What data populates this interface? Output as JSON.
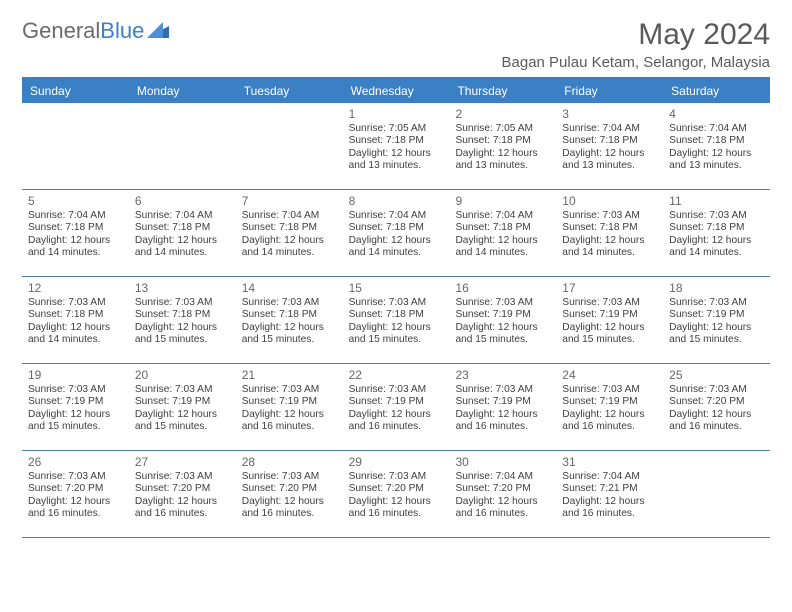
{
  "logo": {
    "text_general": "General",
    "text_blue": "Blue"
  },
  "title": "May 2024",
  "location": "Bagan Pulau Ketam, Selangor, Malaysia",
  "colors": {
    "header_bg": "#3b7fc4",
    "header_text": "#ffffff",
    "border": "#4a7db0",
    "body_text": "#3f3f3f",
    "daynum_text": "#676767",
    "title_text": "#5a5a5a",
    "page_bg": "#ffffff"
  },
  "typography": {
    "title_fontsize": 30,
    "location_fontsize": 15,
    "header_fontsize": 12,
    "daynum_fontsize": 12,
    "detail_fontsize": 10.2
  },
  "day_labels": [
    "Sunday",
    "Monday",
    "Tuesday",
    "Wednesday",
    "Thursday",
    "Friday",
    "Saturday"
  ],
  "weeks": [
    [
      {
        "n": "",
        "sunrise": "",
        "sunset": "",
        "daylight": ""
      },
      {
        "n": "",
        "sunrise": "",
        "sunset": "",
        "daylight": ""
      },
      {
        "n": "",
        "sunrise": "",
        "sunset": "",
        "daylight": ""
      },
      {
        "n": "1",
        "sunrise": "Sunrise: 7:05 AM",
        "sunset": "Sunset: 7:18 PM",
        "daylight": "Daylight: 12 hours and 13 minutes."
      },
      {
        "n": "2",
        "sunrise": "Sunrise: 7:05 AM",
        "sunset": "Sunset: 7:18 PM",
        "daylight": "Daylight: 12 hours and 13 minutes."
      },
      {
        "n": "3",
        "sunrise": "Sunrise: 7:04 AM",
        "sunset": "Sunset: 7:18 PM",
        "daylight": "Daylight: 12 hours and 13 minutes."
      },
      {
        "n": "4",
        "sunrise": "Sunrise: 7:04 AM",
        "sunset": "Sunset: 7:18 PM",
        "daylight": "Daylight: 12 hours and 13 minutes."
      }
    ],
    [
      {
        "n": "5",
        "sunrise": "Sunrise: 7:04 AM",
        "sunset": "Sunset: 7:18 PM",
        "daylight": "Daylight: 12 hours and 14 minutes."
      },
      {
        "n": "6",
        "sunrise": "Sunrise: 7:04 AM",
        "sunset": "Sunset: 7:18 PM",
        "daylight": "Daylight: 12 hours and 14 minutes."
      },
      {
        "n": "7",
        "sunrise": "Sunrise: 7:04 AM",
        "sunset": "Sunset: 7:18 PM",
        "daylight": "Daylight: 12 hours and 14 minutes."
      },
      {
        "n": "8",
        "sunrise": "Sunrise: 7:04 AM",
        "sunset": "Sunset: 7:18 PM",
        "daylight": "Daylight: 12 hours and 14 minutes."
      },
      {
        "n": "9",
        "sunrise": "Sunrise: 7:04 AM",
        "sunset": "Sunset: 7:18 PM",
        "daylight": "Daylight: 12 hours and 14 minutes."
      },
      {
        "n": "10",
        "sunrise": "Sunrise: 7:03 AM",
        "sunset": "Sunset: 7:18 PM",
        "daylight": "Daylight: 12 hours and 14 minutes."
      },
      {
        "n": "11",
        "sunrise": "Sunrise: 7:03 AM",
        "sunset": "Sunset: 7:18 PM",
        "daylight": "Daylight: 12 hours and 14 minutes."
      }
    ],
    [
      {
        "n": "12",
        "sunrise": "Sunrise: 7:03 AM",
        "sunset": "Sunset: 7:18 PM",
        "daylight": "Daylight: 12 hours and 14 minutes."
      },
      {
        "n": "13",
        "sunrise": "Sunrise: 7:03 AM",
        "sunset": "Sunset: 7:18 PM",
        "daylight": "Daylight: 12 hours and 15 minutes."
      },
      {
        "n": "14",
        "sunrise": "Sunrise: 7:03 AM",
        "sunset": "Sunset: 7:18 PM",
        "daylight": "Daylight: 12 hours and 15 minutes."
      },
      {
        "n": "15",
        "sunrise": "Sunrise: 7:03 AM",
        "sunset": "Sunset: 7:18 PM",
        "daylight": "Daylight: 12 hours and 15 minutes."
      },
      {
        "n": "16",
        "sunrise": "Sunrise: 7:03 AM",
        "sunset": "Sunset: 7:19 PM",
        "daylight": "Daylight: 12 hours and 15 minutes."
      },
      {
        "n": "17",
        "sunrise": "Sunrise: 7:03 AM",
        "sunset": "Sunset: 7:19 PM",
        "daylight": "Daylight: 12 hours and 15 minutes."
      },
      {
        "n": "18",
        "sunrise": "Sunrise: 7:03 AM",
        "sunset": "Sunset: 7:19 PM",
        "daylight": "Daylight: 12 hours and 15 minutes."
      }
    ],
    [
      {
        "n": "19",
        "sunrise": "Sunrise: 7:03 AM",
        "sunset": "Sunset: 7:19 PM",
        "daylight": "Daylight: 12 hours and 15 minutes."
      },
      {
        "n": "20",
        "sunrise": "Sunrise: 7:03 AM",
        "sunset": "Sunset: 7:19 PM",
        "daylight": "Daylight: 12 hours and 15 minutes."
      },
      {
        "n": "21",
        "sunrise": "Sunrise: 7:03 AM",
        "sunset": "Sunset: 7:19 PM",
        "daylight": "Daylight: 12 hours and 16 minutes."
      },
      {
        "n": "22",
        "sunrise": "Sunrise: 7:03 AM",
        "sunset": "Sunset: 7:19 PM",
        "daylight": "Daylight: 12 hours and 16 minutes."
      },
      {
        "n": "23",
        "sunrise": "Sunrise: 7:03 AM",
        "sunset": "Sunset: 7:19 PM",
        "daylight": "Daylight: 12 hours and 16 minutes."
      },
      {
        "n": "24",
        "sunrise": "Sunrise: 7:03 AM",
        "sunset": "Sunset: 7:19 PM",
        "daylight": "Daylight: 12 hours and 16 minutes."
      },
      {
        "n": "25",
        "sunrise": "Sunrise: 7:03 AM",
        "sunset": "Sunset: 7:20 PM",
        "daylight": "Daylight: 12 hours and 16 minutes."
      }
    ],
    [
      {
        "n": "26",
        "sunrise": "Sunrise: 7:03 AM",
        "sunset": "Sunset: 7:20 PM",
        "daylight": "Daylight: 12 hours and 16 minutes."
      },
      {
        "n": "27",
        "sunrise": "Sunrise: 7:03 AM",
        "sunset": "Sunset: 7:20 PM",
        "daylight": "Daylight: 12 hours and 16 minutes."
      },
      {
        "n": "28",
        "sunrise": "Sunrise: 7:03 AM",
        "sunset": "Sunset: 7:20 PM",
        "daylight": "Daylight: 12 hours and 16 minutes."
      },
      {
        "n": "29",
        "sunrise": "Sunrise: 7:03 AM",
        "sunset": "Sunset: 7:20 PM",
        "daylight": "Daylight: 12 hours and 16 minutes."
      },
      {
        "n": "30",
        "sunrise": "Sunrise: 7:04 AM",
        "sunset": "Sunset: 7:20 PM",
        "daylight": "Daylight: 12 hours and 16 minutes."
      },
      {
        "n": "31",
        "sunrise": "Sunrise: 7:04 AM",
        "sunset": "Sunset: 7:21 PM",
        "daylight": "Daylight: 12 hours and 16 minutes."
      },
      {
        "n": "",
        "sunrise": "",
        "sunset": "",
        "daylight": ""
      }
    ]
  ]
}
